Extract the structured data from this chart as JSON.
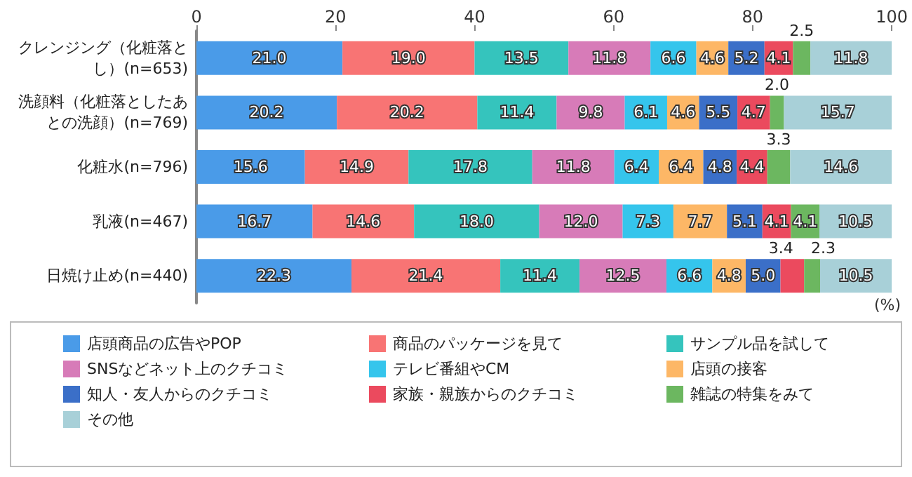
{
  "chart_data": {
    "type": "bar",
    "orientation": "horizontal",
    "stacked": true,
    "grid": false,
    "legend": "bottom",
    "categories": [
      "クレンジング（化粧落とし）(n=653)",
      "洗顔料（化粧落としたあとの洗顔）(n=769)",
      "化粧水(n=796)",
      "乳液(n=467)",
      "日焼け止め(n=440)"
    ],
    "xlim": [
      0,
      100
    ],
    "xticks": [
      0,
      20,
      40,
      60,
      80,
      100
    ],
    "annotations": [
      "(%)"
    ],
    "series": [
      {
        "name": "店頭商品の広告やPOP",
        "color": "#4a9be8",
        "values": [
          21.0,
          20.2,
          15.6,
          16.7,
          22.3
        ],
        "value_labels": [
          "21.0",
          "20.2",
          "15.6",
          "16.7",
          "22.3"
        ]
      },
      {
        "name": "商品のパッケージを見て",
        "color": "#f87474",
        "values": [
          19.0,
          20.2,
          14.9,
          14.6,
          21.4
        ],
        "value_labels": [
          "19.0",
          "20.2",
          "14.9",
          "14.6",
          "21.4"
        ]
      },
      {
        "name": "サンプル品を試して",
        "color": "#35c4bd",
        "values": [
          13.5,
          11.4,
          17.8,
          18.0,
          11.4
        ],
        "value_labels": [
          "13.5",
          "11.4",
          "17.8",
          "18.0",
          "11.4"
        ]
      },
      {
        "name": "SNSなどネット上のクチコミ",
        "color": "#d77bb8",
        "values": [
          11.8,
          9.8,
          11.8,
          12.0,
          12.5
        ],
        "value_labels": [
          "11.8",
          "9.8",
          "11.8",
          "12.0",
          "12.5"
        ]
      },
      {
        "name": "テレビ番組やCM",
        "color": "#35c5ec",
        "values": [
          6.6,
          6.1,
          6.4,
          7.3,
          6.6
        ],
        "value_labels": [
          "6.6",
          "6.1",
          "6.4",
          "7.3",
          "6.6"
        ]
      },
      {
        "name": "店頭の接客",
        "color": "#fdb766",
        "values": [
          4.6,
          4.6,
          6.4,
          7.7,
          4.8
        ],
        "value_labels": [
          "4.6",
          "4.6",
          "6.4",
          "7.7",
          "4.8"
        ]
      },
      {
        "name": "知人・友人からのクチコミ",
        "color": "#3b6fc8",
        "values": [
          5.2,
          5.5,
          4.8,
          5.1,
          5.0
        ],
        "value_labels": [
          "5.2",
          "5.5",
          "4.8",
          "5.1",
          "5.0"
        ]
      },
      {
        "name": "家族・親族からのクチコミ",
        "color": "#eb4a5e",
        "values": [
          4.1,
          4.7,
          4.4,
          4.1,
          3.4
        ],
        "value_labels": [
          "4.1",
          "4.7",
          "4.4",
          "4.1",
          "3.4"
        ]
      },
      {
        "name": "雑誌の特集をみて",
        "color": "#6cb760",
        "values": [
          2.5,
          2.0,
          3.3,
          4.1,
          2.3
        ],
        "value_labels": [
          "2.5",
          "2.0",
          "3.3",
          "4.1",
          "2.3"
        ]
      },
      {
        "name": "その他",
        "color": "#a8d0d8",
        "values": [
          11.8,
          15.7,
          14.6,
          10.5,
          10.5
        ],
        "value_labels": [
          "11.8",
          "15.7",
          "14.6",
          "10.5",
          "10.5"
        ]
      }
    ]
  }
}
